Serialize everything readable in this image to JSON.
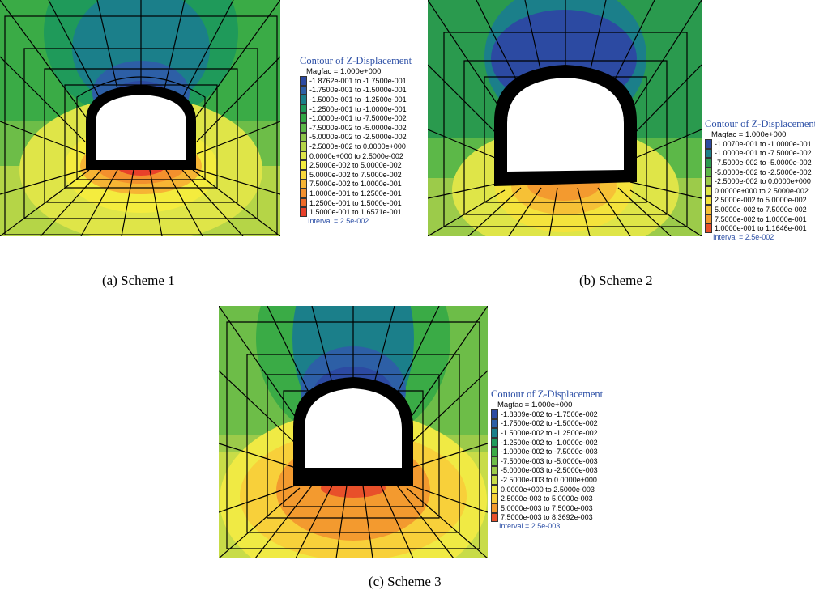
{
  "panels": [
    {
      "caption": "(a) Scheme 1",
      "legend": {
        "title": "Contour of Z-Displacement",
        "magfac": "Magfac =  1.000e+000",
        "interval": "Interval =  2.5e-002",
        "items": [
          {
            "label": "-1.8762e-001 to -1.7500e-001",
            "color": "#2c4aa2"
          },
          {
            "label": "-1.7500e-001 to -1.5000e-001",
            "color": "#2d5fa6"
          },
          {
            "label": "-1.5000e-001 to -1.2500e-001",
            "color": "#1b7f8a"
          },
          {
            "label": "-1.2500e-001 to -1.0000e-001",
            "color": "#1f9a5a"
          },
          {
            "label": "-1.0000e-001 to -7.5000e-002",
            "color": "#33a846"
          },
          {
            "label": "-7.5000e-002 to -5.0000e-002",
            "color": "#5cb848"
          },
          {
            "label": "-5.0000e-002 to -2.5000e-002",
            "color": "#8cc54a"
          },
          {
            "label": "-2.5000e-002 to  0.0000e+000",
            "color": "#b5d547"
          },
          {
            "label": " 0.0000e+000 to  2.5000e-002",
            "color": "#dfe548"
          },
          {
            "label": " 2.5000e-002 to  5.0000e-002",
            "color": "#f4ec3e"
          },
          {
            "label": " 5.0000e-002 to  7.5000e-002",
            "color": "#f8d83a"
          },
          {
            "label": " 7.5000e-002 to  1.0000e-001",
            "color": "#f6b434"
          },
          {
            "label": " 1.0000e-001 to  1.2500e-001",
            "color": "#f3902d"
          },
          {
            "label": " 1.2500e-001 to  1.5000e-001",
            "color": "#ee6a27"
          },
          {
            "label": " 1.5000e-001 to  1.6571e-001",
            "color": "#e8402a"
          }
        ]
      }
    },
    {
      "caption": "(b) Scheme 2",
      "legend": {
        "title": "Contour of Z-Displacement",
        "magfac": "Magfac =  1.000e+000",
        "interval": "Interval =  2.5e-002",
        "items": [
          {
            "label": "-1.0070e-001 to -1.0000e-001",
            "color": "#2c4aa2"
          },
          {
            "label": "-1.0000e-001 to -7.5000e-002",
            "color": "#1b7f8a"
          },
          {
            "label": "-7.5000e-002 to -5.0000e-002",
            "color": "#2a9a4e"
          },
          {
            "label": "-5.0000e-002 to -2.5000e-002",
            "color": "#5cb848"
          },
          {
            "label": "-2.5000e-002 to  0.0000e+000",
            "color": "#9ccb4a"
          },
          {
            "label": " 0.0000e+000 to  2.5000e-002",
            "color": "#dfe548"
          },
          {
            "label": " 2.5000e-002 to  5.0000e-002",
            "color": "#f4e33c"
          },
          {
            "label": " 5.0000e-002 to  7.5000e-002",
            "color": "#f6c136"
          },
          {
            "label": " 7.5000e-002 to  1.0000e-001",
            "color": "#f39a2f"
          },
          {
            "label": " 1.0000e-001 to  1.1646e-001",
            "color": "#e8502a"
          }
        ]
      }
    },
    {
      "caption": "(c) Scheme 3",
      "legend": {
        "title": "Contour of Z-Displacement",
        "magfac": "Magfac =  1.000e+000",
        "interval": "Interval =  2.5e-003",
        "items": [
          {
            "label": "-1.8309e-002 to -1.7500e-002",
            "color": "#2c4aa2"
          },
          {
            "label": "-1.7500e-002 to -1.5000e-002",
            "color": "#2d5fa6"
          },
          {
            "label": "-1.5000e-002 to -1.2500e-002",
            "color": "#1b7f8a"
          },
          {
            "label": "-1.2500e-002 to -1.0000e-002",
            "color": "#1f9a5a"
          },
          {
            "label": "-1.0000e-002 to -7.5000e-003",
            "color": "#3aab46"
          },
          {
            "label": "-7.5000e-003 to -5.0000e-003",
            "color": "#6dbd48"
          },
          {
            "label": "-5.0000e-003 to -2.5000e-003",
            "color": "#9ccb4a"
          },
          {
            "label": "-2.5000e-003 to  0.0000e+000",
            "color": "#c8dc48"
          },
          {
            "label": " 0.0000e+000 to  2.5000e-003",
            "color": "#f0ea44"
          },
          {
            "label": " 2.5000e-003 to  5.0000e-003",
            "color": "#f8d03a"
          },
          {
            "label": " 5.0000e-003 to  7.5000e-003",
            "color": "#f39a2f"
          },
          {
            "label": " 7.5000e-003 to  8.3692e-003",
            "color": "#e8502a"
          }
        ]
      }
    }
  ]
}
